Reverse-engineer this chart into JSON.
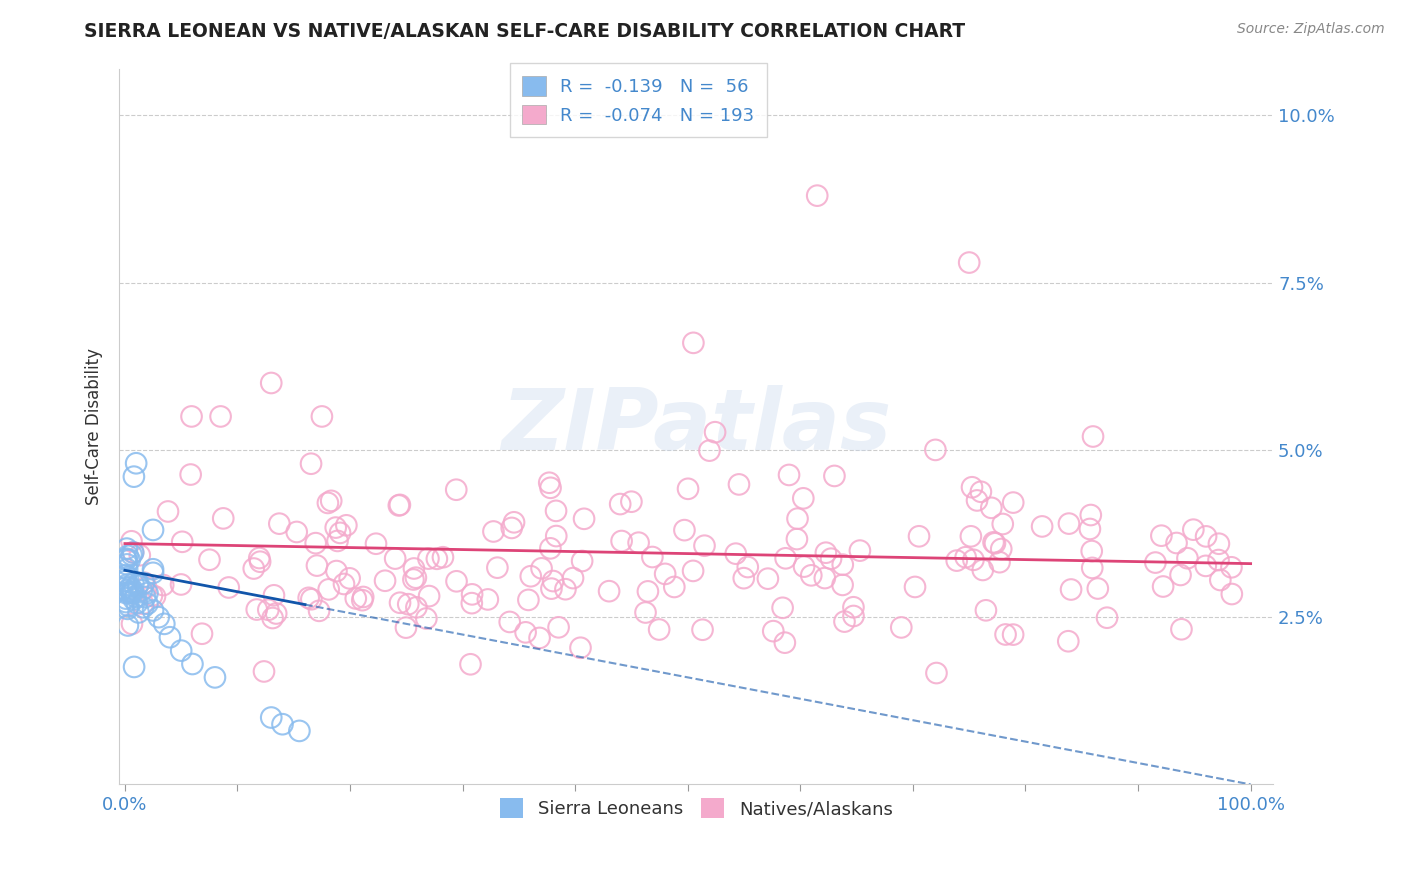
{
  "title": "SIERRA LEONEAN VS NATIVE/ALASKAN SELF-CARE DISABILITY CORRELATION CHART",
  "source": "Source: ZipAtlas.com",
  "ylabel": "Self-Care Disability",
  "legend_r1": "-0.139",
  "legend_n1": "56",
  "legend_r2": "-0.074",
  "legend_n2": "193",
  "legend_label1": "Sierra Leoneans",
  "legend_label2": "Natives/Alaskans",
  "sierra_color": "#88bbee",
  "native_color": "#f4aacc",
  "trend_sierra_color": "#1155aa",
  "trend_native_color": "#dd4477",
  "background_color": "#ffffff",
  "watermark": "ZIPatlas",
  "label_color": "#4488cc",
  "title_color": "#222222",
  "grid_color": "#cccccc",
  "tick_label_color": "#4488cc",
  "sierra_dot_edge": "#88bbee",
  "native_dot_edge": "#f4aacc",
  "native_trend_intercept": 0.036,
  "native_trend_slope": -0.003,
  "sierra_trend_intercept": 0.032,
  "sierra_trend_slope": -0.032
}
